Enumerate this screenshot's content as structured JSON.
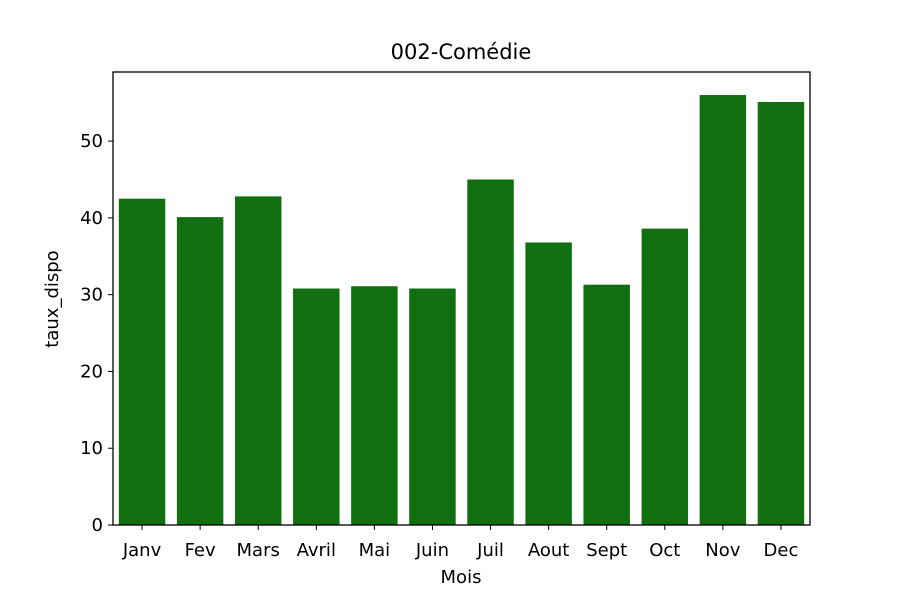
{
  "chart_data": {
    "type": "bar",
    "title": "002-Comédie",
    "xlabel": "Mois",
    "ylabel": "taux_dispo",
    "categories": [
      "Janv",
      "Fev",
      "Mars",
      "Avril",
      "Mai",
      "Juin",
      "Juil",
      "Aout",
      "Sept",
      "Oct",
      "Nov",
      "Dec"
    ],
    "values": [
      42.5,
      40.1,
      42.8,
      30.8,
      31.1,
      30.8,
      45.0,
      36.8,
      31.3,
      38.6,
      56.0,
      55.1
    ],
    "ylim": [
      0,
      59
    ],
    "yticks": [
      0,
      10,
      20,
      30,
      40,
      50
    ],
    "grid": false,
    "bar_color": "#107010"
  }
}
